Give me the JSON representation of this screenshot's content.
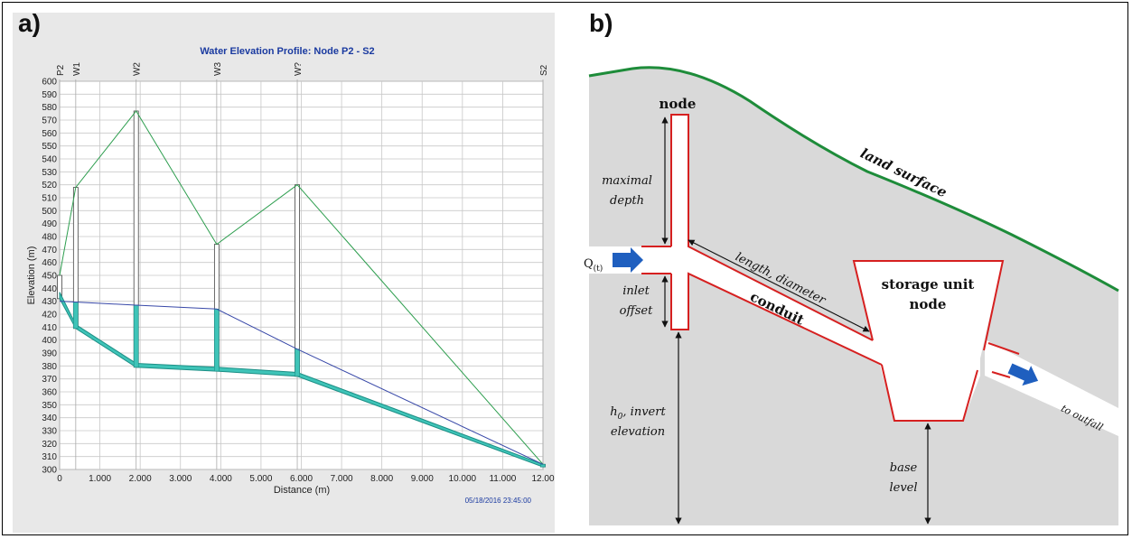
{
  "panel_a": {
    "letter": "a)",
    "chart_data": {
      "type": "line",
      "title": "Water Elevation Profile: Node P2 - S2",
      "xlabel": "Distance (m)",
      "ylabel": "Elevation (m)",
      "timestamp": "05/18/2016 23:45:00",
      "xlim": [
        0,
        12000
      ],
      "ylim": [
        300,
        600
      ],
      "x_tick_labels": [
        "0",
        "1.000",
        "2.000",
        "3.000",
        "4.000",
        "5.000",
        "6.000",
        "7.000",
        "8.000",
        "9.000",
        "10.000",
        "11.000",
        "12.00"
      ],
      "y_ticks": [
        300,
        310,
        320,
        330,
        340,
        350,
        360,
        370,
        380,
        390,
        400,
        410,
        420,
        430,
        440,
        450,
        460,
        470,
        480,
        490,
        500,
        510,
        520,
        530,
        540,
        550,
        560,
        570,
        580,
        590,
        600
      ],
      "grid": true,
      "nodes": [
        {
          "name": "P2",
          "x": 0,
          "invert": 432,
          "rim": 450
        },
        {
          "name": "W1",
          "x": 400,
          "invert": 409,
          "rim": 518
        },
        {
          "name": "W2",
          "x": 1900,
          "invert": 379,
          "rim": 577
        },
        {
          "name": "W3",
          "x": 3900,
          "invert": 376,
          "rim": 474
        },
        {
          "name": "W?",
          "x": 5900,
          "invert": 372,
          "rim": 520
        },
        {
          "name": "S2",
          "x": 12000,
          "invert": 302,
          "rim": 304
        }
      ],
      "series": [
        {
          "name": "ground",
          "color": "#2e9e4f",
          "x": [
            0,
            400,
            1900,
            3900,
            5900,
            12000
          ],
          "y": [
            450,
            518,
            577,
            474,
            520,
            304
          ]
        },
        {
          "name": "water",
          "color": "#3848a8",
          "x": [
            0,
            1900,
            3900,
            5900,
            12000
          ],
          "y": [
            430,
            427,
            424,
            393,
            304
          ]
        },
        {
          "name": "conduit_bottom",
          "color": "#1d8f86",
          "x": [
            0,
            400,
            1900,
            3900,
            5900,
            12000
          ],
          "y": [
            432,
            409,
            379,
            376,
            372,
            302
          ]
        },
        {
          "name": "conduit_top",
          "color": "#1d8f86",
          "x": [
            0,
            400,
            1900,
            3900,
            5900,
            12000
          ],
          "y": [
            437,
            412,
            382,
            379,
            375,
            304
          ]
        }
      ]
    }
  },
  "panel_b": {
    "letter": "b)",
    "labels": {
      "node": "node",
      "maximal": "maximal",
      "depth": "depth",
      "q_main": "Q",
      "q_sub": "(t)",
      "inlet": "inlet",
      "offset": "offset",
      "length_diameter": "length, diameter",
      "conduit": "conduit",
      "storage": "storage unit",
      "storage_node": "node",
      "land_surface": "land surface",
      "h0_h": "h",
      "h0_sub": "0",
      "h0_rest": ", invert",
      "elevation": "elevation",
      "base": "base",
      "level": "level",
      "to_outfall": "to outfall"
    },
    "colors": {
      "ground": "#d9d9d9",
      "land_line": "#1e8c3a",
      "outline": "#d62020",
      "flow_arrow": "#1f5fbf"
    }
  }
}
